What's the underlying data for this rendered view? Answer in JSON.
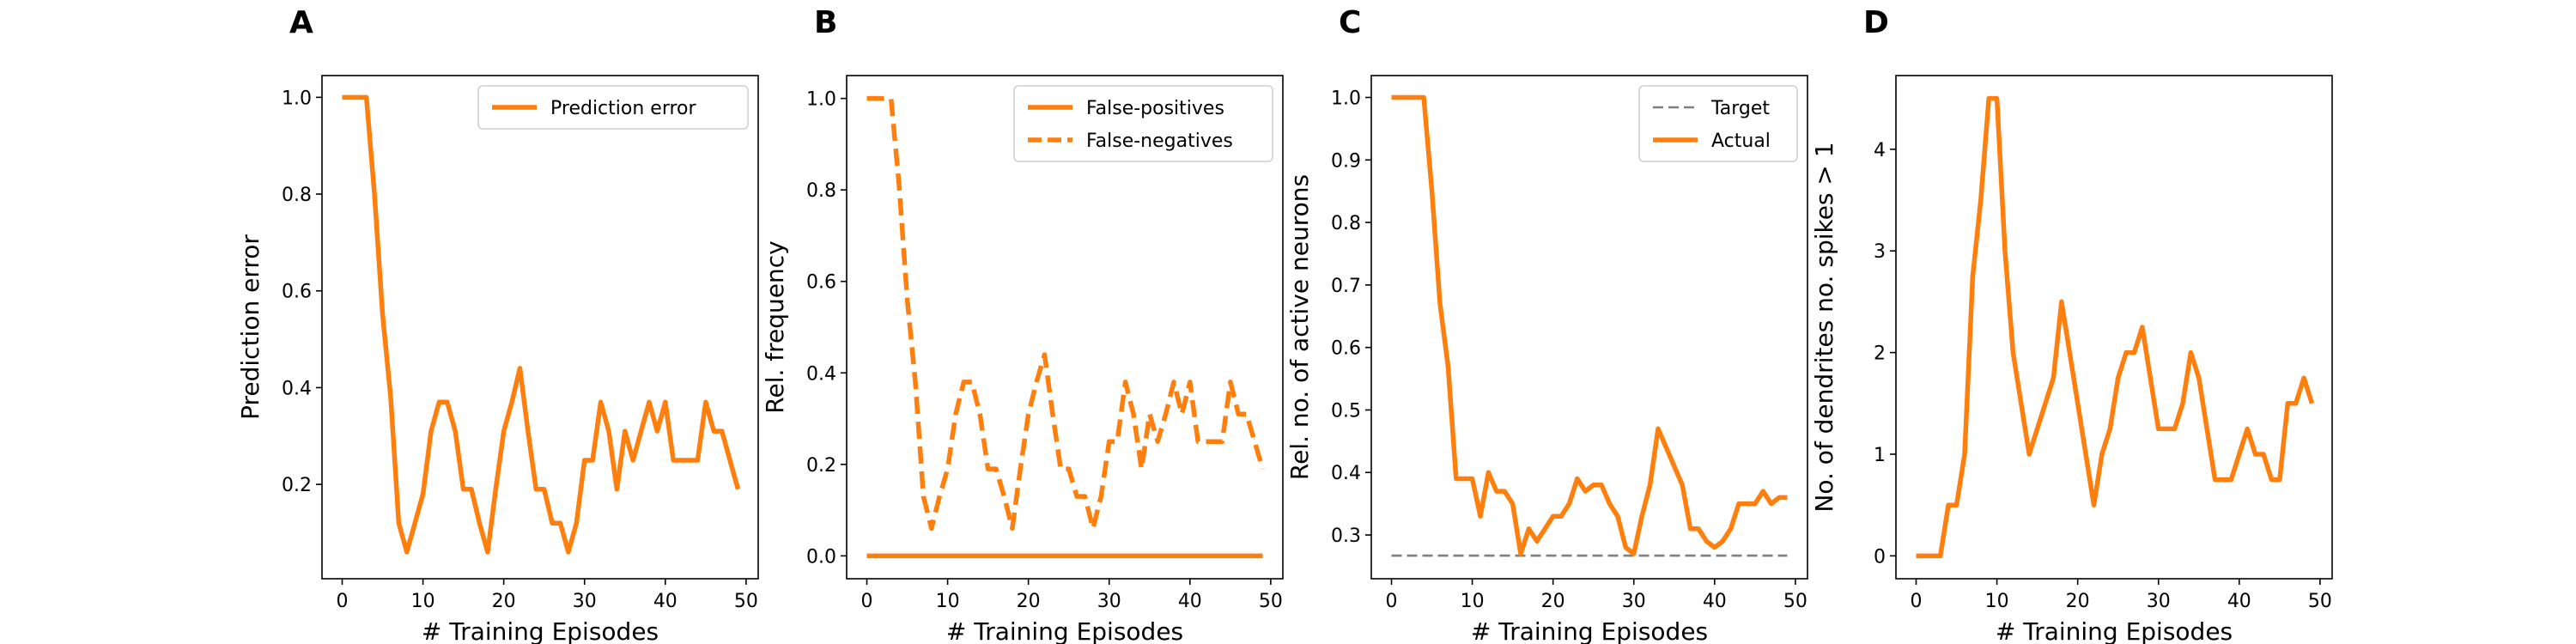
{
  "colors": {
    "series": "#ff7f0e",
    "target": "#7f7f7f",
    "axis": "#000000",
    "legend_border": "#d0d0d0"
  },
  "chart_data": [
    {
      "type": "line",
      "panel_letter": "A",
      "xlabel": "# Training Episodes",
      "ylabel": "Prediction error",
      "xlim": [
        -2.5,
        51.5
      ],
      "ylim": [
        0.005,
        1.045
      ],
      "xticks": [
        0,
        10,
        20,
        30,
        40,
        50
      ],
      "yticks": [
        0.2,
        0.4,
        0.6,
        0.8,
        1.0
      ],
      "ytick_labels": [
        "0.2",
        "0.4",
        "0.6",
        "0.8",
        "1.0"
      ],
      "legend_position": "top-right",
      "series": [
        {
          "name": "Prediction error",
          "style": "solid",
          "x": [
            0,
            1,
            2,
            3,
            4,
            5,
            6,
            7,
            8,
            9,
            10,
            11,
            12,
            13,
            14,
            15,
            16,
            17,
            18,
            19,
            20,
            21,
            22,
            23,
            24,
            25,
            26,
            27,
            28,
            29,
            30,
            31,
            32,
            33,
            34,
            35,
            36,
            37,
            38,
            39,
            40,
            41,
            42,
            43,
            44,
            45,
            46,
            47,
            48,
            49
          ],
          "y": [
            1.0,
            1.0,
            1.0,
            1.0,
            0.8,
            0.55,
            0.38,
            0.12,
            0.06,
            0.12,
            0.18,
            0.31,
            0.37,
            0.37,
            0.31,
            0.19,
            0.19,
            0.12,
            0.06,
            0.19,
            0.31,
            0.37,
            0.44,
            0.31,
            0.19,
            0.19,
            0.12,
            0.12,
            0.06,
            0.12,
            0.25,
            0.25,
            0.37,
            0.31,
            0.19,
            0.31,
            0.25,
            0.31,
            0.37,
            0.31,
            0.37,
            0.25,
            0.25,
            0.25,
            0.25,
            0.37,
            0.31,
            0.31,
            0.25,
            0.19
          ]
        }
      ]
    },
    {
      "type": "line",
      "panel_letter": "B",
      "xlabel": "# Training Episodes",
      "ylabel": "Rel. frequency",
      "xlim": [
        -2.5,
        51.5
      ],
      "ylim": [
        -0.05,
        1.05
      ],
      "xticks": [
        0,
        10,
        20,
        30,
        40,
        50
      ],
      "yticks": [
        0.0,
        0.2,
        0.4,
        0.6,
        0.8,
        1.0
      ],
      "ytick_labels": [
        "0.0",
        "0.2",
        "0.4",
        "0.6",
        "0.8",
        "1.0"
      ],
      "legend_position": "top-right",
      "series": [
        {
          "name": "False-positives",
          "style": "solid",
          "x": [
            0,
            1,
            2,
            3,
            4,
            5,
            6,
            7,
            8,
            9,
            10,
            11,
            12,
            13,
            14,
            15,
            16,
            17,
            18,
            19,
            20,
            21,
            22,
            23,
            24,
            25,
            26,
            27,
            28,
            29,
            30,
            31,
            32,
            33,
            34,
            35,
            36,
            37,
            38,
            39,
            40,
            41,
            42,
            43,
            44,
            45,
            46,
            47,
            48,
            49
          ],
          "y": [
            0,
            0,
            0,
            0,
            0,
            0,
            0,
            0,
            0,
            0,
            0,
            0,
            0,
            0,
            0,
            0,
            0,
            0,
            0,
            0,
            0,
            0,
            0,
            0,
            0,
            0,
            0,
            0,
            0,
            0,
            0,
            0,
            0,
            0,
            0,
            0,
            0,
            0,
            0,
            0,
            0,
            0,
            0,
            0,
            0,
            0,
            0,
            0,
            0,
            0
          ]
        },
        {
          "name": "False-negatives",
          "style": "dashed",
          "x": [
            0,
            1,
            2,
            3,
            4,
            5,
            6,
            7,
            8,
            9,
            10,
            11,
            12,
            13,
            14,
            15,
            16,
            17,
            18,
            19,
            20,
            21,
            22,
            23,
            24,
            25,
            26,
            27,
            28,
            29,
            30,
            31,
            32,
            33,
            34,
            35,
            36,
            37,
            38,
            39,
            40,
            41,
            42,
            43,
            44,
            45,
            46,
            47,
            48,
            49
          ],
          "y": [
            1.0,
            1.0,
            1.0,
            1.0,
            0.81,
            0.56,
            0.38,
            0.13,
            0.06,
            0.13,
            0.19,
            0.31,
            0.38,
            0.38,
            0.31,
            0.19,
            0.19,
            0.13,
            0.06,
            0.19,
            0.31,
            0.38,
            0.44,
            0.31,
            0.19,
            0.19,
            0.13,
            0.13,
            0.06,
            0.13,
            0.25,
            0.25,
            0.38,
            0.31,
            0.19,
            0.31,
            0.25,
            0.31,
            0.38,
            0.31,
            0.38,
            0.25,
            0.25,
            0.25,
            0.25,
            0.38,
            0.31,
            0.31,
            0.25,
            0.19
          ]
        }
      ]
    },
    {
      "type": "line",
      "panel_letter": "C",
      "xlabel": "# Training Episodes",
      "ylabel": "Rel. no. of active neurons",
      "xlim": [
        -2.5,
        51.5
      ],
      "ylim": [
        0.23,
        1.035
      ],
      "xticks": [
        0,
        10,
        20,
        30,
        40,
        50
      ],
      "yticks": [
        0.3,
        0.4,
        0.5,
        0.6,
        0.7,
        0.8,
        0.9,
        1.0
      ],
      "ytick_labels": [
        "0.3",
        "0.4",
        "0.5",
        "0.6",
        "0.7",
        "0.8",
        "0.9",
        "1.0"
      ],
      "legend_position": "top-right",
      "series": [
        {
          "name": "Target",
          "style": "dashed-thin",
          "x": [
            0,
            49
          ],
          "y": [
            0.267,
            0.267
          ]
        },
        {
          "name": "Actual",
          "style": "solid",
          "x": [
            0,
            1,
            2,
            3,
            4,
            5,
            6,
            7,
            8,
            9,
            10,
            11,
            12,
            13,
            14,
            15,
            16,
            17,
            18,
            19,
            20,
            21,
            22,
            23,
            24,
            25,
            26,
            27,
            28,
            29,
            30,
            31,
            32,
            33,
            34,
            35,
            36,
            37,
            38,
            39,
            40,
            41,
            42,
            43,
            44,
            45,
            46,
            47,
            48,
            49
          ],
          "y": [
            1.0,
            1.0,
            1.0,
            1.0,
            1.0,
            0.85,
            0.67,
            0.57,
            0.39,
            0.39,
            0.39,
            0.33,
            0.4,
            0.37,
            0.37,
            0.35,
            0.27,
            0.31,
            0.29,
            0.31,
            0.33,
            0.33,
            0.35,
            0.39,
            0.37,
            0.38,
            0.38,
            0.35,
            0.33,
            0.28,
            0.27,
            0.33,
            0.38,
            0.47,
            0.44,
            0.41,
            0.38,
            0.31,
            0.31,
            0.29,
            0.28,
            0.29,
            0.31,
            0.35,
            0.35,
            0.35,
            0.37,
            0.35,
            0.36,
            0.36
          ]
        }
      ]
    },
    {
      "type": "line",
      "panel_letter": "D",
      "xlabel": "# Training Episodes",
      "ylabel": "No. of dendrites no. spikes > 1",
      "xlim": [
        -2.5,
        51.5
      ],
      "ylim": [
        -0.225,
        4.725
      ],
      "xticks": [
        0,
        10,
        20,
        30,
        40,
        50
      ],
      "yticks": [
        0,
        1,
        2,
        3,
        4
      ],
      "ytick_labels": [
        "0",
        "1",
        "2",
        "3",
        "4"
      ],
      "legend_position": "none",
      "series": [
        {
          "name": "",
          "style": "solid",
          "x": [
            0,
            1,
            2,
            3,
            4,
            5,
            6,
            7,
            8,
            9,
            10,
            11,
            12,
            13,
            14,
            15,
            16,
            17,
            18,
            19,
            20,
            21,
            22,
            23,
            24,
            25,
            26,
            27,
            28,
            29,
            30,
            31,
            32,
            33,
            34,
            35,
            36,
            37,
            38,
            39,
            40,
            41,
            42,
            43,
            44,
            45,
            46,
            47,
            48,
            49
          ],
          "y": [
            0,
            0,
            0,
            0,
            0.5,
            0.5,
            1.0,
            2.75,
            3.5,
            4.5,
            4.5,
            3.0,
            2.0,
            1.5,
            1.0,
            1.25,
            1.5,
            1.75,
            2.5,
            2.0,
            1.5,
            1.0,
            0.5,
            1.0,
            1.25,
            1.75,
            2.0,
            2.0,
            2.25,
            1.75,
            1.25,
            1.25,
            1.25,
            1.5,
            2.0,
            1.75,
            1.25,
            0.75,
            0.75,
            0.75,
            1.0,
            1.25,
            1.0,
            1.0,
            0.75,
            0.75,
            1.5,
            1.5,
            1.75,
            1.5
          ]
        }
      ]
    }
  ]
}
